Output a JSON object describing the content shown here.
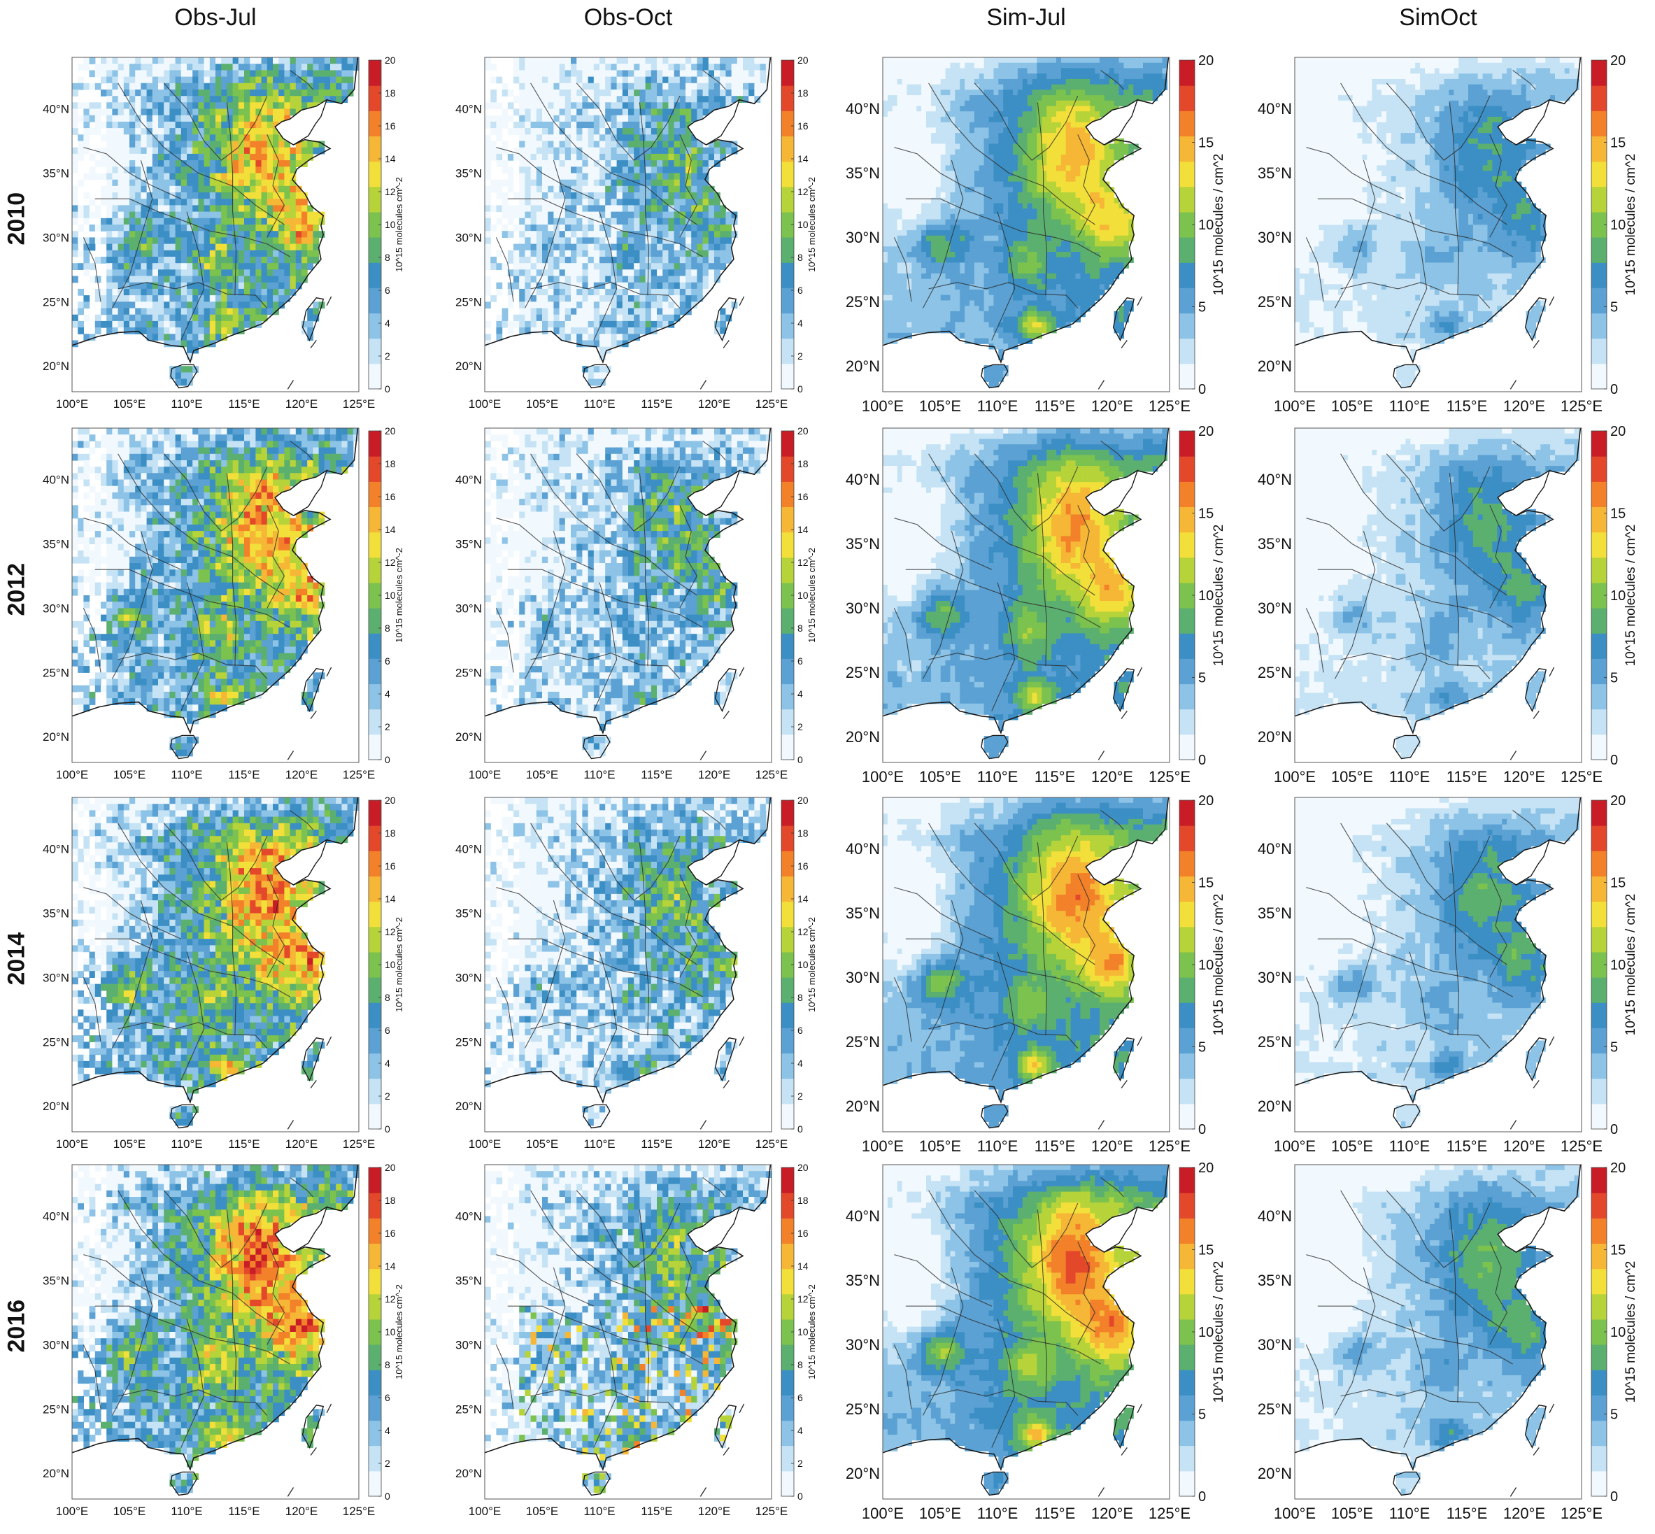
{
  "columns": [
    {
      "title": "Obs-Jul",
      "kind": "obs",
      "month": "Jul"
    },
    {
      "title": "Obs-Oct",
      "kind": "obs",
      "month": "Oct"
    },
    {
      "title": "Sim-Jul",
      "kind": "sim",
      "month": "Jul"
    },
    {
      "title": "SimOct",
      "kind": "sim",
      "month": "Oct"
    }
  ],
  "rows": [
    {
      "year": "2010"
    },
    {
      "year": "2012"
    },
    {
      "year": "2014"
    },
    {
      "year": "2016"
    }
  ],
  "map": {
    "lon_range": [
      100,
      125
    ],
    "lat_range": [
      18,
      44
    ],
    "lon_ticks": [
      "100°E",
      "105°E",
      "110°E",
      "115°E",
      "120°E",
      "125°E"
    ],
    "lat_ticks": [
      "20°N",
      "25°N",
      "30°N",
      "35°N",
      "40°N"
    ]
  },
  "colorbars": {
    "obs": {
      "label": "10^15 molecules cm^-2",
      "ticks": [
        "0",
        "2",
        "4",
        "6",
        "8",
        "10",
        "12",
        "14",
        "16",
        "18",
        "20"
      ],
      "range": [
        0,
        20
      ]
    },
    "sim": {
      "label": "10^15 molecules / cm^2",
      "ticks": [
        "0",
        "5",
        "10",
        "15",
        "20"
      ],
      "range": [
        0,
        20
      ]
    }
  },
  "colors": {
    "scale": [
      "#f2f9fe",
      "#c6e3f5",
      "#8cc3e6",
      "#5ba1d3",
      "#3c8fc4",
      "#5bb070",
      "#7cc24e",
      "#b6d33a",
      "#f2df3a",
      "#f6b636",
      "#f2812a",
      "#e4482a",
      "#c81d27"
    ],
    "ocean": "#ffffff",
    "border": "#1a1a1a"
  }
}
